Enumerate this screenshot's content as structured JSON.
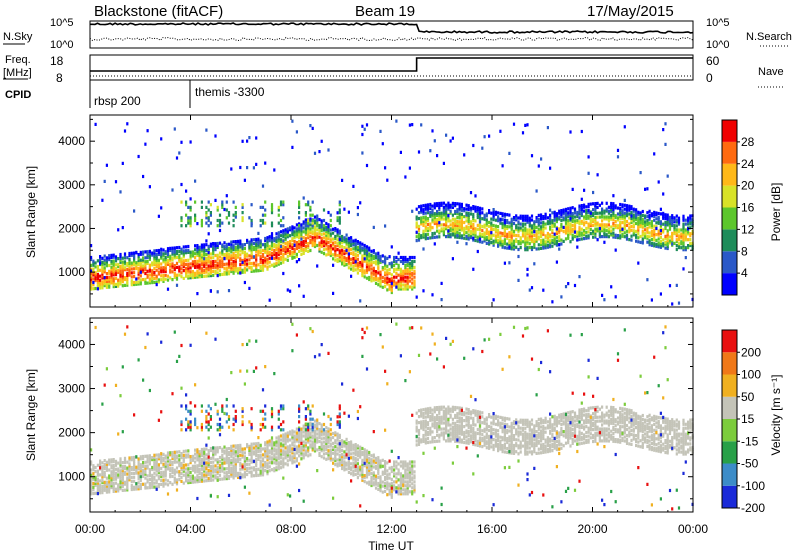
{
  "header": {
    "title": "Blackstone (fitACF)",
    "beam": "Beam 19",
    "date": "17/May/2015"
  },
  "noise_panel": {
    "left_label": "N.Sky",
    "right_label": "N.Search",
    "left_ticks": [
      "10^5",
      "10^0"
    ],
    "right_ticks": [
      "10^5",
      "10^0"
    ]
  },
  "freq_panel": {
    "left_label_line1": "Freq.",
    "left_label_line2": "[MHz]",
    "right_label": "Nave",
    "left_ticks": [
      "18",
      "8"
    ],
    "right_ticks": [
      "60",
      "0"
    ]
  },
  "cpid_panel": {
    "label": "CPID",
    "programs": [
      {
        "name": "rbsp 200",
        "start_hour": 0
      },
      {
        "name": "themis -3300",
        "start_hour": 4
      }
    ]
  },
  "chart_data": [
    {
      "type": "heatmap",
      "parameter": "Power",
      "ylabel": "Slant Range [km]",
      "ylim": [
        200,
        4600
      ],
      "yticks": [
        1000,
        2000,
        3000,
        4000
      ],
      "xlim": [
        0,
        24
      ],
      "colorbar": {
        "label": "Power [dB]",
        "ticks": [
          "4",
          "8",
          "12",
          "16",
          "20",
          "24",
          "28"
        ],
        "range": [
          0,
          30
        ],
        "colors": [
          "#0000ff",
          "#2a58c8",
          "#1e8c5a",
          "#5cc62c",
          "#d8e228",
          "#ffb818",
          "#ff6a10",
          "#f00000"
        ]
      }
    },
    {
      "type": "heatmap",
      "parameter": "Velocity",
      "ylabel": "Slant Range [km]",
      "ylim": [
        200,
        4600
      ],
      "yticks": [
        1000,
        2000,
        3000,
        4000
      ],
      "xlim": [
        0,
        24
      ],
      "colorbar": {
        "label": "Velocity [m s⁻¹]",
        "ticks": [
          "200",
          "100",
          "50",
          "15",
          "-15",
          "-50",
          "-100",
          "-200"
        ],
        "colors": [
          "#1a2ad8",
          "#3c8cc8",
          "#28a048",
          "#7ccc3c",
          "#c4c4b8",
          "#f0b020",
          "#f07818",
          "#e81010"
        ]
      }
    }
  ],
  "time_axis": {
    "label": "Time UT",
    "ticks": [
      "00:00",
      "04:00",
      "08:00",
      "12:00",
      "16:00",
      "20:00",
      "00:00"
    ]
  }
}
